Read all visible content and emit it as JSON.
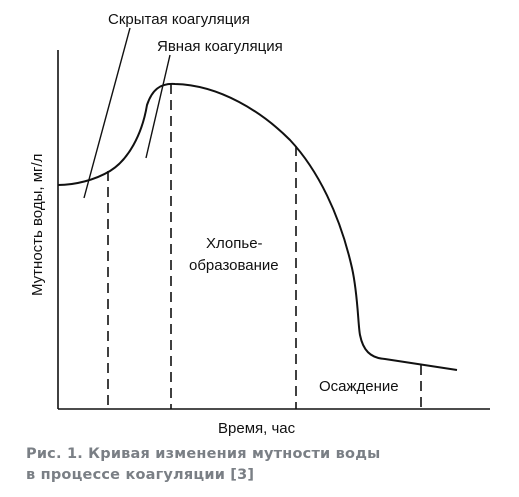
{
  "labels": {
    "hidden_coagulation": "Скрытая коагуляция",
    "explicit_coagulation": "Явная коагуляция",
    "floc_line1": "Хлопье-",
    "floc_line2": "образование",
    "sedimentation": "Осаждение"
  },
  "axes": {
    "xlabel": "Время, час",
    "ylabel": "Мутность воды, мг/л"
  },
  "caption": {
    "line1": "Рис. 1. Кривая изменения мутности воды",
    "line2": "в процессе коагуляции [3]"
  },
  "colors": {
    "ink": "#111111",
    "caption": "#7a7f85"
  }
}
